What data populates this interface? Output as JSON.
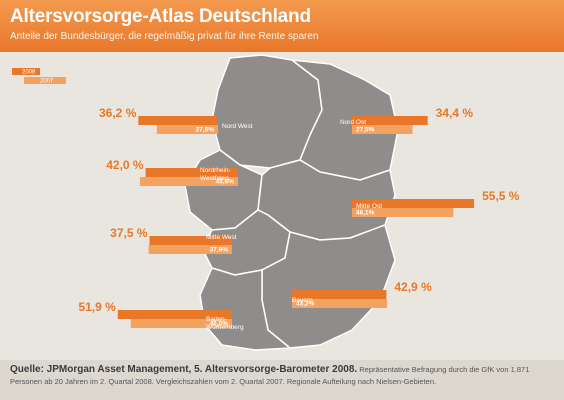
{
  "header": {
    "title": "Altersvorsorge-Atlas Deutschland",
    "subtitle": "Anteile der Bundesbürger, die regelmäßig privat für ihre Rente sparen"
  },
  "colors": {
    "orange_2008": "#e9772a",
    "orange_2007": "#f4a260",
    "map_land": "#8f8d8b",
    "background": "#e9e6e0"
  },
  "chart_data": {
    "type": "bar",
    "series": [
      {
        "name": "2008",
        "values": [
          36.2,
          34.4,
          42.0,
          55.5,
          37.5,
          42.9,
          51.9
        ],
        "labels": [
          "36,2 %",
          "34,4 %",
          "42,0 %",
          "55,5 %",
          "37,5 %",
          "42,9 %",
          "51,9 %"
        ]
      },
      {
        "name": "2007",
        "values": [
          27.8,
          27.5,
          44.6,
          46.1,
          37.9,
          43.2,
          46.0
        ],
        "labels": [
          "27,8%",
          "27,5%",
          "44,6%",
          "46,1%",
          "37,9%",
          "43,2%",
          "46,0%"
        ]
      }
    ],
    "categories": [
      "Nord West",
      "Nord Ost",
      "Nordrhein-Westfalen",
      "Mitte Ost",
      "Mitte West",
      "Bayern",
      "Baden-Württemberg"
    ]
  },
  "footer": {
    "source": "Quelle: JPMorgan Asset Management, 5. Altersvorsorge-Barometer 2008.",
    "note": "Repräsentative Befragung durch die GfK von 1.871 Personen ab 20 Jahren im 2. Quartal 2008. Vergleichszahlen vom 2. Quartal 2007. Regionale Aufteilung nach Nielsen-Gebieten."
  }
}
